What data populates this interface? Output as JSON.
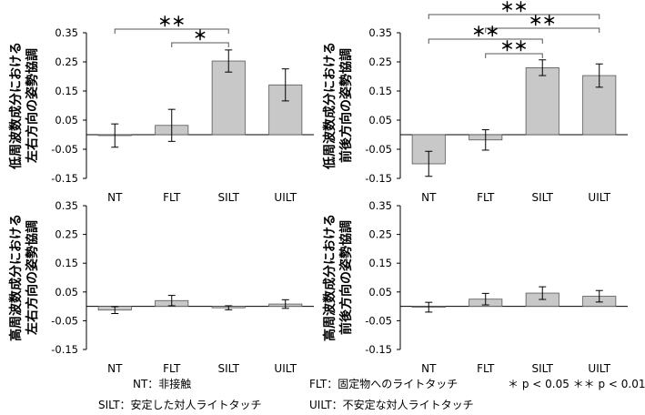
{
  "chart_data": [
    {
      "type": "bar",
      "ylabel": [
        "低周波数成分における",
        "左右方向の姿勢協調"
      ],
      "categories": [
        "NT",
        "FLT",
        "SILT",
        "UILT"
      ],
      "values": [
        -0.003,
        0.032,
        0.253,
        0.171
      ],
      "errors": [
        0.04,
        0.055,
        0.038,
        0.055
      ],
      "ylim": [
        -0.15,
        0.35
      ],
      "yticks": [
        "0.35",
        "0.25",
        "0.15",
        "0.05",
        "-0.05",
        "-0.15"
      ],
      "significance": [
        {
          "from": "NT",
          "to": "SILT",
          "label": "＊＊"
        },
        {
          "from": "FLT",
          "to": "SILT",
          "label": "＊"
        }
      ]
    },
    {
      "type": "bar",
      "ylabel": [
        "低周波数成分における",
        "前後方向の姿勢協調"
      ],
      "categories": [
        "NT",
        "FLT",
        "SILT",
        "UILT"
      ],
      "values": [
        -0.1,
        -0.018,
        0.23,
        0.203
      ],
      "errors": [
        0.043,
        0.035,
        0.027,
        0.04
      ],
      "ylim": [
        -0.15,
        0.35
      ],
      "yticks": [
        "0.35",
        "0.25",
        "0.15",
        "0.05",
        "-0.05",
        "-0.15"
      ],
      "significance": [
        {
          "from": "NT",
          "to": "UILT",
          "label": "＊＊"
        },
        {
          "from": "FLT",
          "to": "UILT",
          "label": "＊＊"
        },
        {
          "from": "NT",
          "to": "SILT",
          "label": "＊＊"
        },
        {
          "from": "FLT",
          "to": "SILT",
          "label": "＊＊"
        }
      ]
    },
    {
      "type": "bar",
      "ylabel": [
        "高周波数成分における",
        "左右方向の姿勢協調"
      ],
      "categories": [
        "NT",
        "FLT",
        "SILT",
        "UILT"
      ],
      "values": [
        -0.013,
        0.02,
        -0.005,
        0.008
      ],
      "errors": [
        0.012,
        0.018,
        0.007,
        0.015
      ],
      "ylim": [
        -0.15,
        0.35
      ],
      "yticks": [
        "0.35",
        "0.25",
        "0.15",
        "0.05",
        "-0.05",
        "-0.15"
      ],
      "significance": []
    },
    {
      "type": "bar",
      "ylabel": [
        "高周波数成分における",
        "前後方向の姿勢協調"
      ],
      "categories": [
        "NT",
        "FLT",
        "SILT",
        "UILT"
      ],
      "values": [
        -0.003,
        0.025,
        0.046,
        0.035
      ],
      "errors": [
        0.017,
        0.02,
        0.022,
        0.02
      ],
      "ylim": [
        -0.15,
        0.35
      ],
      "yticks": [
        "0.35",
        "0.25",
        "0.15",
        "0.05",
        "-0.05",
        "-0.15"
      ],
      "significance": []
    }
  ],
  "legend": {
    "nt": "NT：非接触",
    "flt": "FLT：固定物へのライトタッチ",
    "significance": "＊ p < 0.05 ＊＊ p < 0.01",
    "silt": "SILT：安定した対人ライトタッチ",
    "uilt": "UILT：不安定な対人ライトタッチ"
  },
  "colors": {
    "bar_fill": "#c8c8c8",
    "bar_stroke": "#555555",
    "axis": "#000000"
  }
}
